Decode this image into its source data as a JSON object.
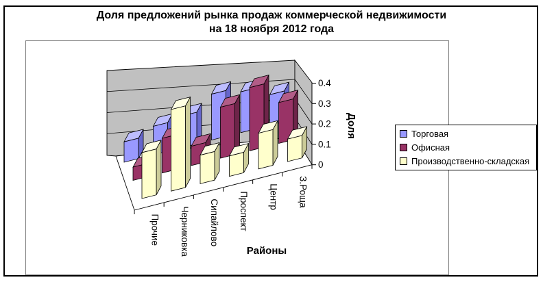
{
  "title": {
    "line1": "Доля предложений рынка продаж коммерческой недвижимости",
    "line2": "на 18 ноября 2012 года"
  },
  "chart_data": {
    "type": "bar",
    "style": "3d-column",
    "categories": [
      "Прочие",
      "Черниковка",
      "Сипайлово",
      "Проспект",
      "Центр",
      "З.Роща"
    ],
    "series": [
      {
        "name": "Торговая",
        "color": "#9999FF",
        "color_top": "#BDBDFF",
        "color_side": "#6666CC",
        "values": [
          0.1,
          0.14,
          0.155,
          0.225,
          0.2,
          0.15
        ]
      },
      {
        "name": "Офисная",
        "color": "#993366",
        "color_top": "#B25C87",
        "color_side": "#6E2449",
        "values": [
          0.065,
          0.17,
          0.095,
          0.25,
          0.31,
          0.2
        ]
      },
      {
        "name": "Производственно-складская",
        "color": "#FFFFCC",
        "color_top": "#FFFFE3",
        "color_side": "#CCCC99",
        "values": [
          0.225,
          0.4,
          0.14,
          0.1,
          0.175,
          0.11
        ]
      }
    ],
    "xlabel": "Районы",
    "ylabel": "Доля",
    "ylim": [
      0,
      0.4
    ],
    "yticks": [
      "0",
      "0.1",
      "0.2",
      "0.3",
      "0.4"
    ],
    "grid": true,
    "legend_position": "right",
    "wall_color": "#C0C0C0",
    "floor_color": "#FFFFFF"
  },
  "legend": {
    "items": [
      "Торговая",
      "Офисная",
      "Производственно-складская"
    ]
  }
}
